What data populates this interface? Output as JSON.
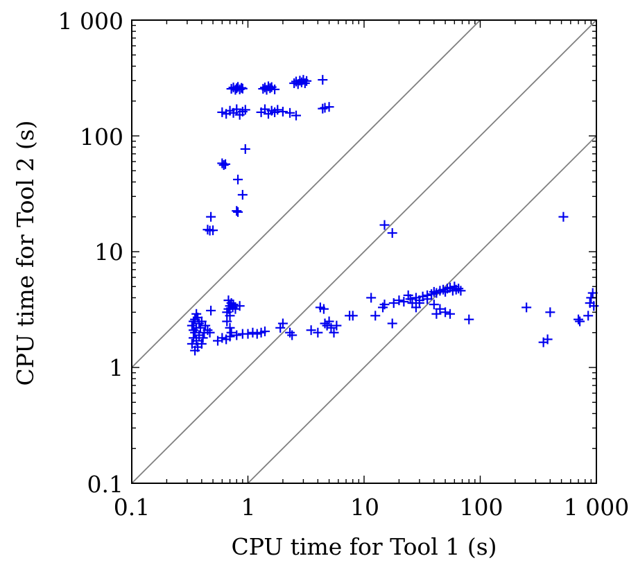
{
  "chart_data": {
    "type": "scatter",
    "title": "",
    "xlabel": "CPU time for Tool 1 (s)",
    "ylabel": "CPU time for Tool 2 (s)",
    "xscale": "log",
    "yscale": "log",
    "xlim": [
      0.1,
      1000
    ],
    "ylim": [
      0.1,
      1000
    ],
    "xticks": [
      "0.1",
      "1",
      "10",
      "100",
      "1 000"
    ],
    "yticks": [
      "0.1",
      "1",
      "10",
      "100",
      "1 000"
    ],
    "grid": false,
    "legend": "none",
    "marker": "plus",
    "color": "#0000ee",
    "reference_lines": [
      {
        "relation": "y = 10x"
      },
      {
        "relation": "y = x"
      },
      {
        "relation": "y = x/10"
      }
    ],
    "series": [
      {
        "points": [
          [
            0.72,
            255
          ],
          [
            0.75,
            262
          ],
          [
            0.78,
            250
          ],
          [
            0.8,
            258
          ],
          [
            0.82,
            265
          ],
          [
            0.85,
            252
          ],
          [
            0.88,
            260
          ],
          [
            0.9,
            256
          ],
          [
            1.35,
            255
          ],
          [
            1.4,
            262
          ],
          [
            1.45,
            250
          ],
          [
            1.5,
            268
          ],
          [
            1.55,
            258
          ],
          [
            1.6,
            264
          ],
          [
            1.7,
            252
          ],
          [
            2.5,
            285
          ],
          [
            2.6,
            295
          ],
          [
            2.7,
            280
          ],
          [
            2.8,
            300
          ],
          [
            2.9,
            290
          ],
          [
            3.0,
            305
          ],
          [
            3.1,
            285
          ],
          [
            3.2,
            298
          ],
          [
            4.4,
            305
          ],
          [
            0.6,
            160
          ],
          [
            0.65,
            155
          ],
          [
            0.7,
            165
          ],
          [
            0.75,
            158
          ],
          [
            0.8,
            170
          ],
          [
            0.85,
            152
          ],
          [
            0.9,
            162
          ],
          [
            0.95,
            168
          ],
          [
            1.3,
            160
          ],
          [
            1.4,
            170
          ],
          [
            1.5,
            155
          ],
          [
            1.6,
            165
          ],
          [
            1.7,
            160
          ],
          [
            1.8,
            168
          ],
          [
            2.0,
            162
          ],
          [
            2.3,
            158
          ],
          [
            2.6,
            150
          ],
          [
            4.4,
            172
          ],
          [
            4.6,
            175
          ],
          [
            5.0,
            178
          ],
          [
            0.6,
            58
          ],
          [
            0.62,
            56
          ],
          [
            0.64,
            57
          ],
          [
            0.95,
            77
          ],
          [
            0.82,
            42
          ],
          [
            0.9,
            31
          ],
          [
            0.8,
            22.5
          ],
          [
            0.82,
            22
          ],
          [
            0.48,
            20
          ],
          [
            0.45,
            15.5
          ],
          [
            0.47,
            15.2
          ],
          [
            0.5,
            15.3
          ],
          [
            15,
            17
          ],
          [
            17.5,
            14.5
          ],
          [
            520,
            20
          ],
          [
            0.33,
            1.6
          ],
          [
            0.34,
            1.8
          ],
          [
            0.35,
            2.0
          ],
          [
            0.36,
            2.2
          ],
          [
            0.37,
            1.5
          ],
          [
            0.38,
            2.4
          ],
          [
            0.35,
            2.6
          ],
          [
            0.33,
            2.3
          ],
          [
            0.34,
            2.1
          ],
          [
            0.36,
            1.7
          ],
          [
            0.38,
            1.9
          ],
          [
            0.4,
            2.5
          ],
          [
            0.42,
            2.0
          ],
          [
            0.4,
            1.6
          ],
          [
            0.35,
            1.4
          ],
          [
            0.37,
            2.7
          ],
          [
            0.39,
            2.2
          ],
          [
            0.41,
            1.8
          ],
          [
            0.36,
            2.9
          ],
          [
            0.34,
            2.5
          ],
          [
            0.43,
            2.3
          ],
          [
            0.45,
            2.1
          ],
          [
            0.47,
            2.0
          ],
          [
            0.48,
            3.1
          ],
          [
            0.55,
            1.7
          ],
          [
            0.6,
            1.8
          ],
          [
            0.65,
            1.75
          ],
          [
            0.7,
            1.85
          ],
          [
            0.8,
            1.9
          ],
          [
            0.9,
            1.95
          ],
          [
            0.66,
            3.0
          ],
          [
            0.68,
            3.2
          ],
          [
            0.7,
            3.4
          ],
          [
            0.72,
            3.6
          ],
          [
            0.68,
            3.8
          ],
          [
            0.7,
            2.8
          ],
          [
            0.74,
            3.3
          ],
          [
            0.66,
            2.5
          ],
          [
            0.7,
            2.2
          ],
          [
            0.72,
            2.0
          ],
          [
            0.85,
            3.4
          ],
          [
            0.78,
            3.2
          ],
          [
            0.75,
            3.5
          ],
          [
            1.0,
            1.95
          ],
          [
            1.1,
            2.0
          ],
          [
            1.2,
            1.95
          ],
          [
            1.3,
            2.0
          ],
          [
            1.4,
            2.05
          ],
          [
            1.9,
            2.2
          ],
          [
            2.0,
            2.4
          ],
          [
            2.3,
            2.0
          ],
          [
            2.4,
            1.9
          ],
          [
            3.5,
            2.1
          ],
          [
            4.0,
            2.0
          ],
          [
            4.2,
            3.3
          ],
          [
            4.5,
            3.2
          ],
          [
            4.6,
            2.4
          ],
          [
            4.8,
            2.3
          ],
          [
            5.0,
            2.5
          ],
          [
            5.2,
            2.2
          ],
          [
            5.5,
            2.0
          ],
          [
            5.8,
            2.3
          ],
          [
            7.5,
            2.8
          ],
          [
            8.0,
            2.8
          ],
          [
            11.5,
            4.0
          ],
          [
            12.5,
            2.8
          ],
          [
            14.5,
            3.3
          ],
          [
            15,
            3.5
          ],
          [
            17.5,
            2.4
          ],
          [
            18,
            3.6
          ],
          [
            20,
            3.8
          ],
          [
            22,
            3.7
          ],
          [
            25,
            3.9
          ],
          [
            28,
            4.0
          ],
          [
            30,
            3.8
          ],
          [
            32,
            4.1
          ],
          [
            35,
            4.2
          ],
          [
            38,
            4.3
          ],
          [
            40,
            4.5
          ],
          [
            42,
            4.4
          ],
          [
            45,
            4.6
          ],
          [
            48,
            4.7
          ],
          [
            50,
            4.5
          ],
          [
            52,
            4.8
          ],
          [
            55,
            4.9
          ],
          [
            58,
            4.6
          ],
          [
            60,
            5.0
          ],
          [
            62,
            4.7
          ],
          [
            65,
            4.8
          ],
          [
            68,
            4.6
          ],
          [
            30,
            3.6
          ],
          [
            35,
            3.9
          ],
          [
            40,
            3.5
          ],
          [
            45,
            3.2
          ],
          [
            50,
            3.0
          ],
          [
            42,
            2.9
          ],
          [
            55,
            2.9
          ],
          [
            80,
            2.6
          ],
          [
            24,
            4.2
          ],
          [
            26,
            3.6
          ],
          [
            28,
            3.3
          ],
          [
            250,
            3.3
          ],
          [
            350,
            1.65
          ],
          [
            380,
            1.75
          ],
          [
            400,
            3.0
          ],
          [
            700,
            2.6
          ],
          [
            720,
            2.5
          ],
          [
            850,
            2.8
          ],
          [
            880,
            3.6
          ],
          [
            900,
            4.0
          ],
          [
            930,
            4.4
          ],
          [
            950,
            3.4
          ]
        ]
      }
    ]
  }
}
